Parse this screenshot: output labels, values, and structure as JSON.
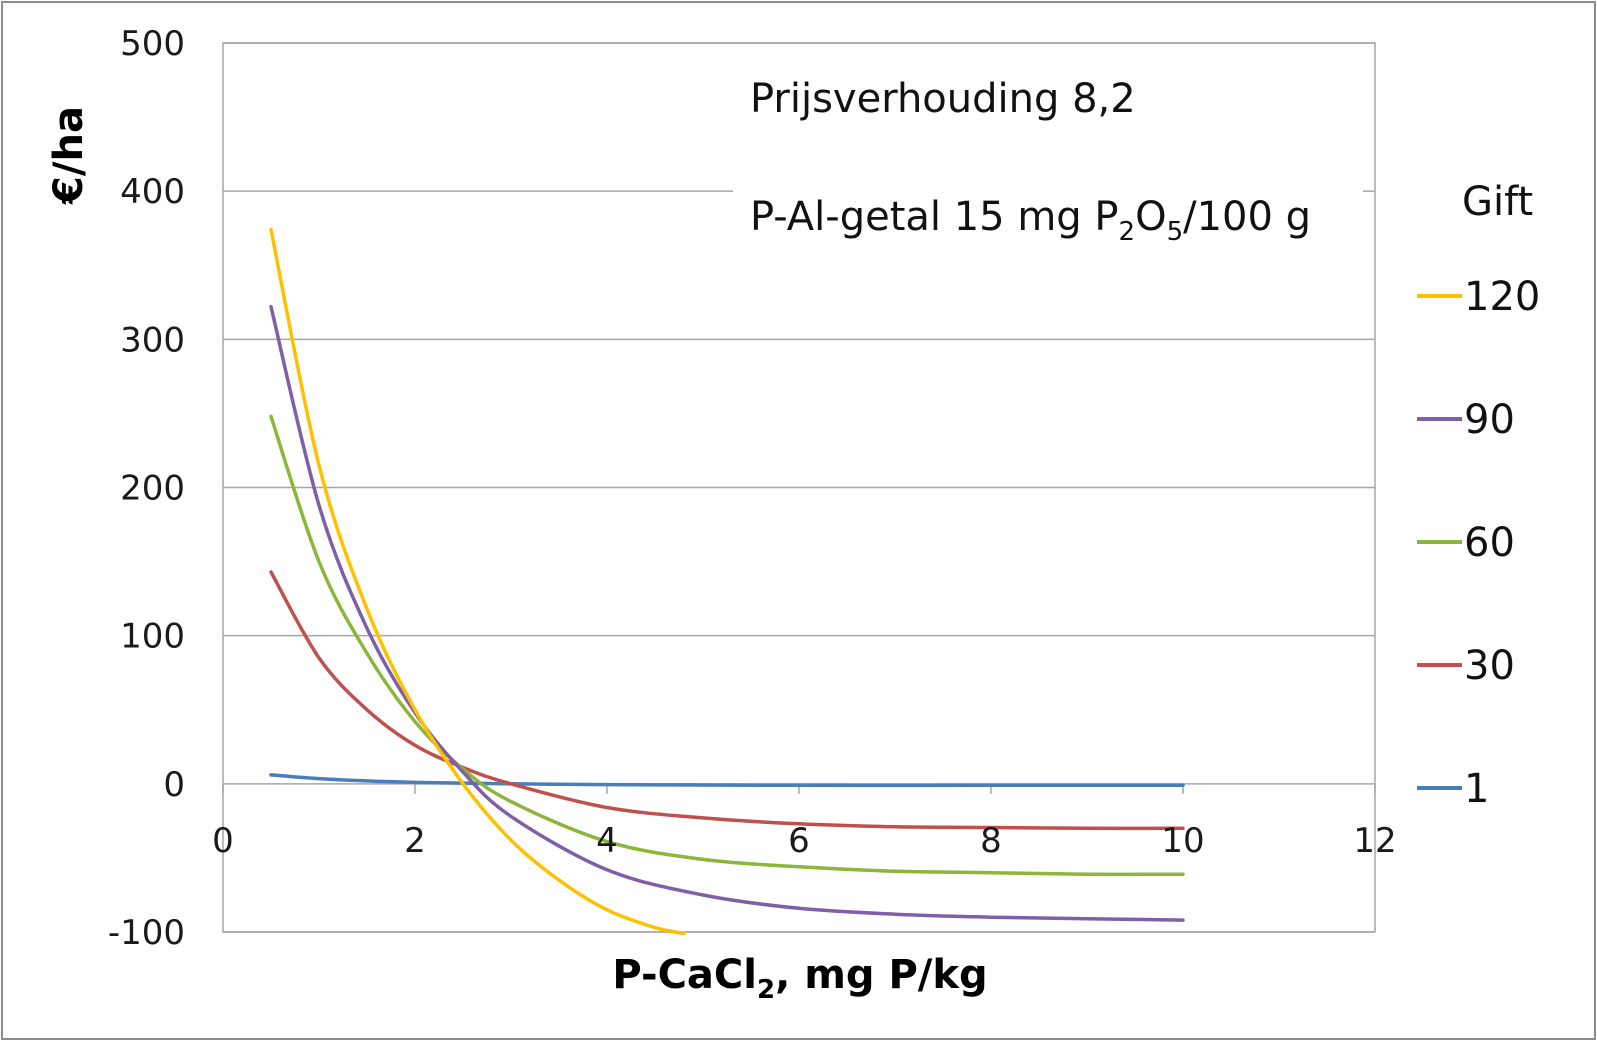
{
  "chart_data": {
    "type": "line",
    "xlabel": "P-CaCl₂, mg P/kg",
    "ylabel": "€/ha",
    "xlim": [
      0,
      12
    ],
    "ylim": [
      -100,
      500
    ],
    "xticks": [
      "0",
      "2",
      "4",
      "6",
      "8",
      "10",
      "12"
    ],
    "yticks": [
      "-100",
      "0",
      "100",
      "200",
      "300",
      "400",
      "500"
    ],
    "grid": "horizontal",
    "legend_title": "Gift",
    "legend_position": "right",
    "annotations": [
      "Prijsverhouding 8,2",
      "P-Al-getal 15 mg P₂O₅/100 g"
    ],
    "series": [
      {
        "name": "120",
        "color": "#FFC000",
        "x": [
          0.5,
          1.0,
          1.5,
          2.0,
          2.5,
          3.0,
          3.5,
          4.0,
          4.5,
          4.8
        ],
        "y": [
          374,
          215,
          118,
          50,
          0,
          -38,
          -65,
          -85,
          -97,
          -101
        ]
      },
      {
        "name": "90",
        "color": "#7F5FA8",
        "x": [
          0.5,
          1.0,
          1.5,
          2.0,
          2.5,
          3.0,
          4.0,
          5.0,
          6.0,
          7.0,
          8.0,
          9.0,
          10.0
        ],
        "y": [
          322,
          188,
          105,
          48,
          8,
          -22,
          -58,
          -75,
          -84,
          -88,
          -90,
          -91,
          -92
        ]
      },
      {
        "name": "60",
        "color": "#8DB53A",
        "x": [
          0.5,
          1.0,
          1.5,
          2.0,
          2.5,
          3.0,
          4.0,
          5.0,
          6.0,
          7.0,
          8.0,
          9.0,
          10.0
        ],
        "y": [
          248,
          150,
          88,
          42,
          10,
          -12,
          -39,
          -51,
          -56,
          -59,
          -60,
          -61,
          -61
        ]
      },
      {
        "name": "30",
        "color": "#C0504D",
        "x": [
          0.5,
          1.0,
          1.5,
          2.0,
          2.5,
          3.0,
          4.0,
          5.0,
          6.0,
          7.0,
          8.0,
          9.0,
          10.0
        ],
        "y": [
          143,
          85,
          50,
          26,
          11,
          0,
          -16,
          -23,
          -27,
          -29,
          -29.5,
          -30,
          -30
        ]
      },
      {
        "name": "1",
        "color": "#4A7EBB",
        "x": [
          0.5,
          1.0,
          1.5,
          2.0,
          3.0,
          4.0,
          6.0,
          8.0,
          10.0
        ],
        "y": [
          6,
          3.5,
          2,
          1,
          0,
          -0.5,
          -1,
          -1,
          -1
        ]
      }
    ]
  }
}
